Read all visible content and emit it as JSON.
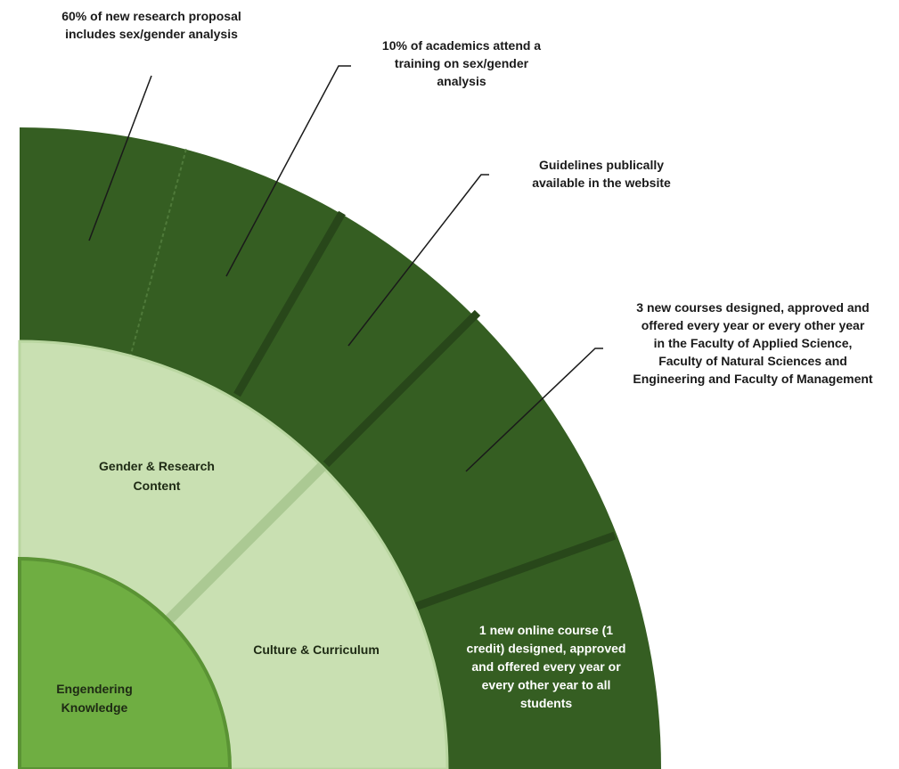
{
  "colors": {
    "outer_ring": "#355e22",
    "ring_divider": "#28471a",
    "middle_ring": "#c9e0b2",
    "middle_divider": "#abc993",
    "core": "#6fae42",
    "core_border": "#5a9334",
    "leader_line": "#1a1a1a",
    "outer_text": "#ffffff",
    "inner_text": "#1e2a14",
    "callout_text": "#1a1a1a"
  },
  "core": {
    "label_lines": [
      "Engendering",
      "Knowledge"
    ]
  },
  "middle_ring": {
    "segments": [
      {
        "id": "gender-research-content",
        "label_lines": [
          "Gender & Research",
          "Content"
        ]
      },
      {
        "id": "culture-curriculum",
        "label_lines": [
          "Culture & Curriculum"
        ]
      }
    ]
  },
  "outer_ring": {
    "segments": [
      {
        "id": "research-proposal",
        "callout_lines": [
          "60% of new research proposal",
          "includes sex/gender analysis"
        ]
      },
      {
        "id": "academics-training",
        "callout_lines": [
          "10% of academics attend a",
          "training on sex/gender",
          "analysis"
        ]
      },
      {
        "id": "guidelines",
        "callout_lines": [
          "Guidelines publically",
          "available in the website"
        ]
      },
      {
        "id": "new-courses",
        "callout_lines": [
          "3 new courses designed, approved and",
          "offered every year or every other  year",
          "in the Faculty of Applied Science,",
          "Faculty of Natural Sciences and",
          "Engineering and Faculty of Management"
        ]
      },
      {
        "id": "online-course",
        "label_lines": [
          "1 new online course (1",
          "credit) designed, approved",
          "and offered every year or",
          "every other year to all",
          "students"
        ]
      }
    ]
  }
}
